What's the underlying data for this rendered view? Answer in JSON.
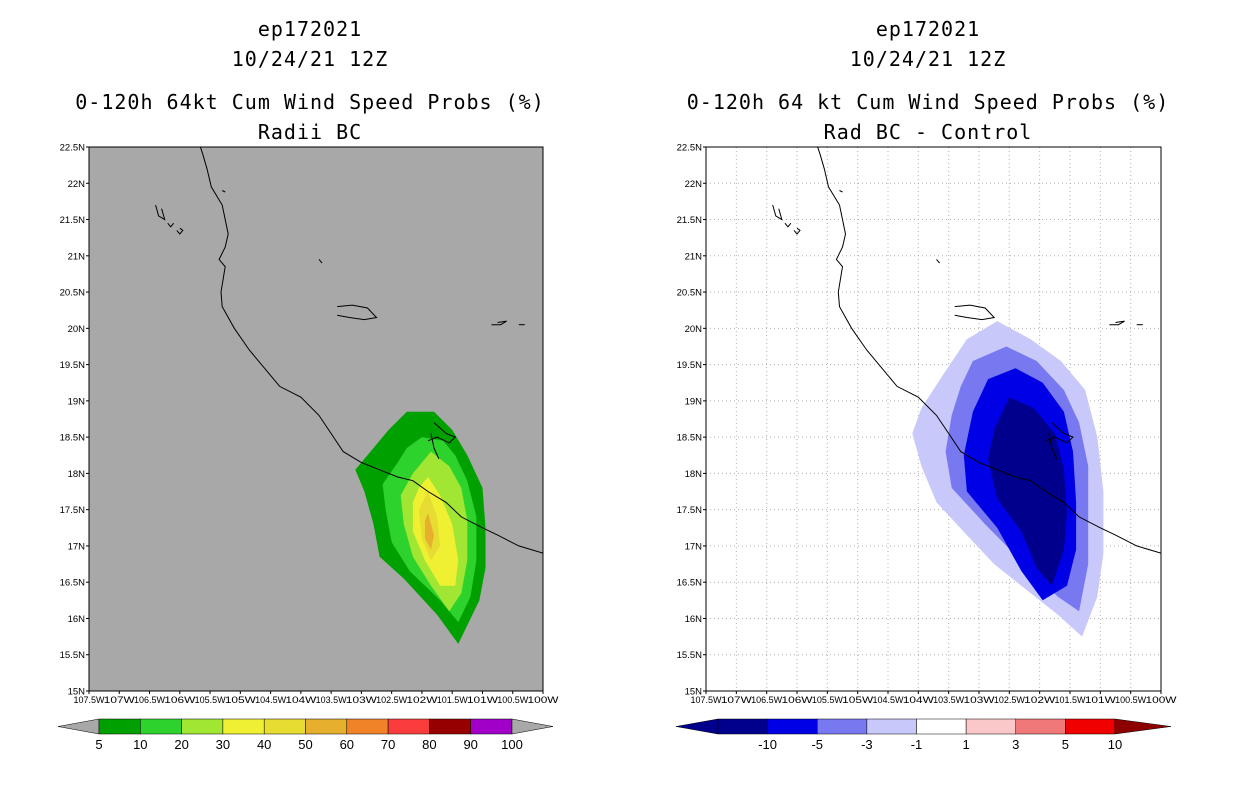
{
  "chart_data": [
    {
      "type": "contour-map",
      "title_lines": [
        "ep172021",
        "10/24/21 12Z",
        "0-120h 64kt Cum Wind Speed Probs (%)",
        "Radii BC"
      ],
      "background_color": "#A8A8A8",
      "y_ticks": [
        "22.5N",
        "22N",
        "21.5N",
        "21N",
        "20.5N",
        "20N",
        "19.5N",
        "19N",
        "18.5N",
        "18N",
        "17.5N",
        "17N",
        "16.5N",
        "16N",
        "15.5N",
        "15N"
      ],
      "x_ticks": [
        "107.5W",
        "107W",
        "106.5W",
        "106W",
        "105.5W",
        "105W",
        "104.5W",
        "104W",
        "103.5W",
        "103W",
        "102.5W",
        "102W",
        "101.5W",
        "101W",
        "100.5W",
        "100W"
      ],
      "lon_range": [
        -107.5,
        -100
      ],
      "lat_range": [
        15,
        22.5
      ],
      "colorbar": {
        "labels": [
          "5",
          "10",
          "20",
          "30",
          "40",
          "50",
          "60",
          "70",
          "80",
          "90",
          "100"
        ],
        "colors": [
          "#00A000",
          "#2DD22D",
          "#A0E632",
          "#F0F032",
          "#E6DC32",
          "#E6AF2D",
          "#F08228",
          "#FA3C3C",
          "#960000",
          "#A000C8"
        ]
      },
      "levels_present": [
        {
          "level": 5,
          "color": "#00A000",
          "points": [
            [
              -102.25,
              18.85
            ],
            [
              -101.8,
              18.85
            ],
            [
              -101.5,
              18.6
            ],
            [
              -101.25,
              18.25
            ],
            [
              -101,
              17.8
            ],
            [
              -100.95,
              17.25
            ],
            [
              -100.95,
              16.7
            ],
            [
              -101.05,
              16.25
            ],
            [
              -101.4,
              15.65
            ],
            [
              -101.75,
              16.05
            ],
            [
              -102.3,
              16.55
            ],
            [
              -102.7,
              16.85
            ],
            [
              -102.8,
              17.3
            ],
            [
              -102.95,
              17.75
            ],
            [
              -103.1,
              18.05
            ],
            [
              -102.8,
              18.35
            ],
            [
              -102.55,
              18.6
            ]
          ]
        },
        {
          "level": 10,
          "color": "#2DD22D",
          "points": [
            [
              -102,
              18.5
            ],
            [
              -101.65,
              18.45
            ],
            [
              -101.45,
              18.25
            ],
            [
              -101.25,
              17.9
            ],
            [
              -101.1,
              17.4
            ],
            [
              -101.1,
              16.8
            ],
            [
              -101.2,
              16.3
            ],
            [
              -101.4,
              15.95
            ],
            [
              -101.7,
              16.25
            ],
            [
              -102.2,
              16.65
            ],
            [
              -102.5,
              17.05
            ],
            [
              -102.6,
              17.5
            ],
            [
              -102.65,
              17.85
            ],
            [
              -102.4,
              18.15
            ],
            [
              -102.25,
              18.35
            ]
          ]
        },
        {
          "level": 20,
          "color": "#A0E632",
          "points": [
            [
              -101.85,
              18.3
            ],
            [
              -101.55,
              18.1
            ],
            [
              -101.35,
              17.8
            ],
            [
              -101.25,
              17.35
            ],
            [
              -101.25,
              16.8
            ],
            [
              -101.35,
              16.35
            ],
            [
              -101.55,
              16.1
            ],
            [
              -101.85,
              16.45
            ],
            [
              -102.15,
              16.85
            ],
            [
              -102.3,
              17.3
            ],
            [
              -102.35,
              17.7
            ],
            [
              -102.15,
              18.0
            ]
          ]
        },
        {
          "level": 30,
          "color": "#F0F032",
          "points": [
            [
              -101.9,
              17.95
            ],
            [
              -101.7,
              17.7
            ],
            [
              -101.5,
              17.3
            ],
            [
              -101.4,
              16.8
            ],
            [
              -101.45,
              16.45
            ],
            [
              -101.7,
              16.45
            ],
            [
              -101.95,
              16.8
            ],
            [
              -102.15,
              17.2
            ],
            [
              -102.15,
              17.6
            ],
            [
              -102.05,
              17.8
            ]
          ]
        },
        {
          "level": 40,
          "color": "#E6DC32",
          "points": [
            [
              -101.9,
              17.75
            ],
            [
              -101.75,
              17.4
            ],
            [
              -101.7,
              17.0
            ],
            [
              -101.85,
              16.8
            ],
            [
              -102.0,
              17.1
            ],
            [
              -102.05,
              17.5
            ]
          ]
        },
        {
          "level": 50,
          "color": "#E6AF2D",
          "points": [
            [
              -101.9,
              17.45
            ],
            [
              -101.8,
              17.15
            ],
            [
              -101.85,
              16.95
            ],
            [
              -101.95,
              17.1
            ],
            [
              -101.95,
              17.35
            ]
          ]
        }
      ]
    },
    {
      "type": "contour-map",
      "title_lines": [
        "ep172021",
        "10/24/21 12Z",
        "0-120h 64 kt Cum Wind Speed Probs (%)",
        "Rad BC - Control"
      ],
      "background_color": "#FFFFFF",
      "grid": true,
      "y_ticks": [
        "22.5N",
        "22N",
        "21.5N",
        "21N",
        "20.5N",
        "20N",
        "19.5N",
        "19N",
        "18.5N",
        "18N",
        "17.5N",
        "17N",
        "16.5N",
        "16N",
        "15.5N",
        "15N"
      ],
      "x_ticks": [
        "107.5W",
        "107W",
        "106.5W",
        "106W",
        "105.5W",
        "105W",
        "104.5W",
        "104W",
        "103.5W",
        "103W",
        "102.5W",
        "102W",
        "101.5W",
        "101W",
        "100.5W",
        "100W"
      ],
      "lon_range": [
        -107.5,
        -100
      ],
      "lat_range": [
        15,
        22.5
      ],
      "colorbar": {
        "labels": [
          "-10",
          "-5",
          "-3",
          "-1",
          "1",
          "3",
          "5",
          "10"
        ],
        "colors": [
          "#00008C",
          "#0000E6",
          "#7878F0",
          "#C8C8FA",
          "#FFFFFF",
          "#FAC8C8",
          "#F07878",
          "#F00000",
          "#8C0000"
        ]
      },
      "levels_present": [
        {
          "level": -1,
          "color": "#C8C8FA",
          "points": [
            [
              -103.2,
              19.85
            ],
            [
              -102.7,
              20.1
            ],
            [
              -102.15,
              19.85
            ],
            [
              -101.65,
              19.55
            ],
            [
              -101.25,
              19.15
            ],
            [
              -101.05,
              18.5
            ],
            [
              -100.95,
              17.75
            ],
            [
              -100.95,
              16.9
            ],
            [
              -101.05,
              16.3
            ],
            [
              -101.3,
              15.75
            ],
            [
              -101.7,
              16.05
            ],
            [
              -102.15,
              16.35
            ],
            [
              -102.75,
              16.75
            ],
            [
              -103.2,
              17.15
            ],
            [
              -103.7,
              17.6
            ],
            [
              -103.95,
              18.1
            ],
            [
              -104.1,
              18.55
            ],
            [
              -103.95,
              18.9
            ],
            [
              -103.6,
              19.35
            ]
          ]
        },
        {
          "level": -3,
          "color": "#7878F0",
          "points": [
            [
              -103.1,
              19.55
            ],
            [
              -102.55,
              19.75
            ],
            [
              -102.05,
              19.55
            ],
            [
              -101.6,
              19.15
            ],
            [
              -101.35,
              18.7
            ],
            [
              -101.2,
              18.1
            ],
            [
              -101.2,
              17.45
            ],
            [
              -101.2,
              16.75
            ],
            [
              -101.35,
              16.1
            ],
            [
              -101.7,
              16.3
            ],
            [
              -102.25,
              16.75
            ],
            [
              -102.9,
              17.3
            ],
            [
              -103.45,
              17.8
            ],
            [
              -103.55,
              18.3
            ],
            [
              -103.45,
              18.8
            ],
            [
              -103.3,
              19.2
            ]
          ]
        },
        {
          "level": -5,
          "color": "#0000E6",
          "points": [
            [
              -102.85,
              19.3
            ],
            [
              -102.4,
              19.45
            ],
            [
              -101.95,
              19.25
            ],
            [
              -101.6,
              18.85
            ],
            [
              -101.45,
              18.3
            ],
            [
              -101.4,
              17.6
            ],
            [
              -101.4,
              16.95
            ],
            [
              -101.55,
              16.45
            ],
            [
              -101.95,
              16.25
            ],
            [
              -102.3,
              16.65
            ],
            [
              -102.7,
              17.25
            ],
            [
              -103.2,
              17.75
            ],
            [
              -103.25,
              18.25
            ],
            [
              -103.1,
              18.85
            ]
          ]
        },
        {
          "level": -10,
          "color": "#00008C",
          "points": [
            [
              -102.5,
              19.05
            ],
            [
              -102.1,
              18.9
            ],
            [
              -101.75,
              18.55
            ],
            [
              -101.6,
              18.05
            ],
            [
              -101.55,
              17.45
            ],
            [
              -101.6,
              16.95
            ],
            [
              -101.8,
              16.45
            ],
            [
              -102.05,
              16.7
            ],
            [
              -102.3,
              17.2
            ],
            [
              -102.7,
              17.65
            ],
            [
              -102.85,
              18.2
            ],
            [
              -102.75,
              18.6
            ]
          ]
        }
      ]
    }
  ],
  "coastline": [
    [
      -105.7,
      22.6
    ],
    [
      -105.62,
      22.4
    ],
    [
      -105.55,
      22.2
    ],
    [
      -105.48,
      21.95
    ],
    [
      -105.3,
      21.7
    ],
    [
      -105.25,
      21.5
    ],
    [
      -105.2,
      21.3
    ],
    [
      -105.25,
      21.12
    ],
    [
      -105.35,
      20.95
    ],
    [
      -105.25,
      20.85
    ],
    [
      -105.28,
      20.7
    ],
    [
      -105.32,
      20.5
    ],
    [
      -105.3,
      20.3
    ],
    [
      -105.1,
      20.0
    ],
    [
      -104.85,
      19.7
    ],
    [
      -104.6,
      19.45
    ],
    [
      -104.35,
      19.2
    ],
    [
      -104.0,
      19.05
    ],
    [
      -103.7,
      18.8
    ],
    [
      -103.5,
      18.55
    ],
    [
      -103.3,
      18.3
    ],
    [
      -103.0,
      18.15
    ],
    [
      -102.7,
      18.05
    ],
    [
      -102.4,
      17.95
    ],
    [
      -102.15,
      17.9
    ],
    [
      -101.9,
      17.75
    ],
    [
      -101.6,
      17.6
    ],
    [
      -101.35,
      17.4
    ],
    [
      -101.0,
      17.25
    ],
    [
      -100.75,
      17.15
    ],
    [
      -100.4,
      17.0
    ],
    [
      -100.0,
      16.9
    ]
  ],
  "islands": [
    [
      [
        -106.4,
        21.7
      ],
      [
        -106.35,
        21.55
      ],
      [
        -106.25,
        21.5
      ],
      [
        -106.3,
        21.65
      ]
    ],
    [
      [
        -106.2,
        21.45
      ],
      [
        -106.15,
        21.4
      ],
      [
        -106.1,
        21.45
      ]
    ],
    [
      [
        -106.05,
        21.35
      ],
      [
        -106.0,
        21.3
      ],
      [
        -105.95,
        21.35
      ],
      [
        -106.0,
        21.38
      ]
    ],
    [
      [
        -105.3,
        21.9
      ],
      [
        -105.25,
        21.88
      ]
    ],
    [
      [
        -103.7,
        20.95
      ],
      [
        -103.65,
        20.9
      ]
    ],
    [
      [
        -103.4,
        20.3
      ],
      [
        -103.15,
        20.32
      ],
      [
        -102.9,
        20.28
      ],
      [
        -102.75,
        20.15
      ],
      [
        -102.95,
        20.12
      ],
      [
        -103.2,
        20.15
      ],
      [
        -103.4,
        20.18
      ]
    ],
    [
      [
        -100.85,
        20.05
      ],
      [
        -100.7,
        20.05
      ],
      [
        -100.6,
        20.1
      ],
      [
        -100.75,
        20.08
      ]
    ],
    [
      [
        -100.4,
        20.05
      ],
      [
        -100.3,
        20.05
      ]
    ],
    [
      [
        -101.8,
        18.7
      ],
      [
        -101.6,
        18.55
      ],
      [
        -101.45,
        18.5
      ],
      [
        -101.55,
        18.42
      ],
      [
        -101.75,
        18.5
      ],
      [
        -101.9,
        18.45
      ]
    ],
    [
      [
        -101.85,
        18.55
      ],
      [
        -101.8,
        18.35
      ],
      [
        -101.72,
        18.2
      ]
    ]
  ]
}
